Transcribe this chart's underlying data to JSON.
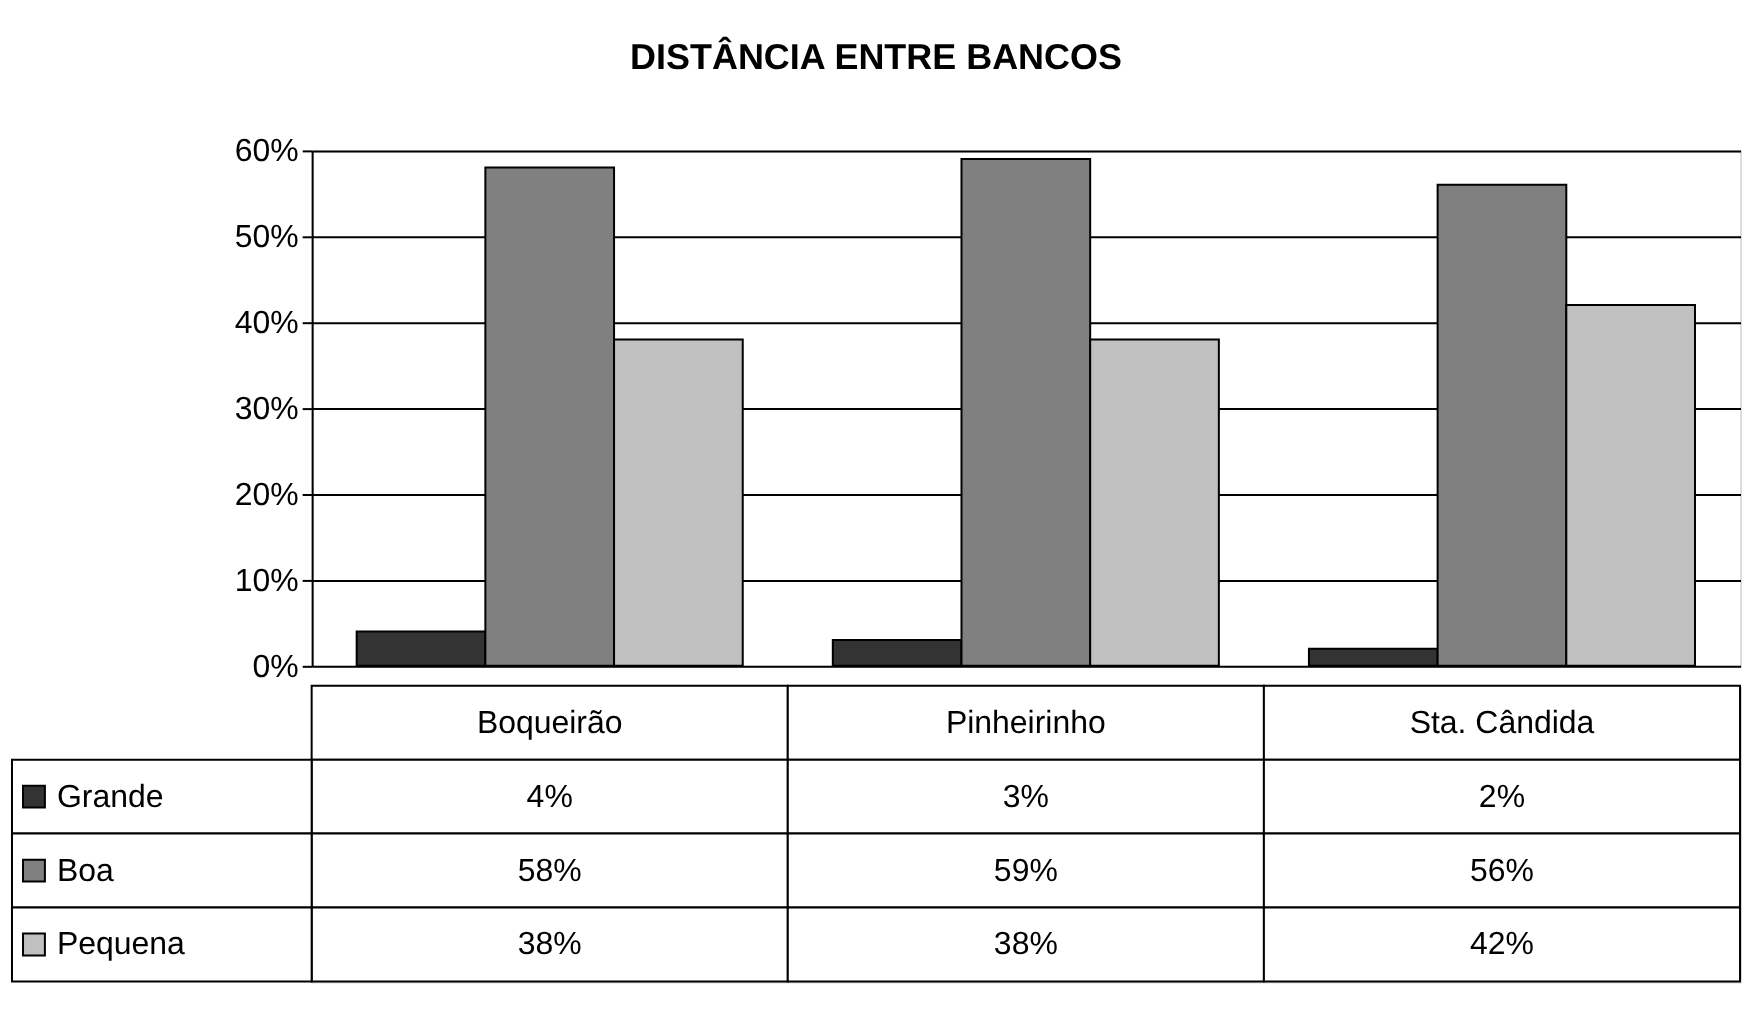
{
  "chart_data": {
    "type": "bar",
    "title": "DISTÂNCIA ENTRE BANCOS",
    "categories": [
      "Boqueirão",
      "Pinheirinho",
      "Sta. Cândida"
    ],
    "series": [
      {
        "name": "Grande",
        "color": "#333333",
        "values": [
          4,
          3,
          2
        ],
        "value_labels": [
          "4%",
          "3%",
          "2%"
        ]
      },
      {
        "name": "Boa",
        "color": "#808080",
        "values": [
          58,
          59,
          56
        ],
        "value_labels": [
          "58%",
          "59%",
          "56%"
        ]
      },
      {
        "name": "Pequena",
        "color": "#c0c0c0",
        "values": [
          38,
          38,
          42
        ],
        "value_labels": [
          "38%",
          "38%",
          "42%"
        ]
      }
    ],
    "ylim": [
      0,
      60
    ],
    "yticks": [
      {
        "value": 0,
        "label": "0%"
      },
      {
        "value": 10,
        "label": "10%"
      },
      {
        "value": 20,
        "label": "20%"
      },
      {
        "value": 30,
        "label": "30%"
      },
      {
        "value": 40,
        "label": "40%"
      },
      {
        "value": 50,
        "label": "50%"
      },
      {
        "value": 60,
        "label": "60%"
      }
    ],
    "grid": "y",
    "legend": "bottom left"
  }
}
